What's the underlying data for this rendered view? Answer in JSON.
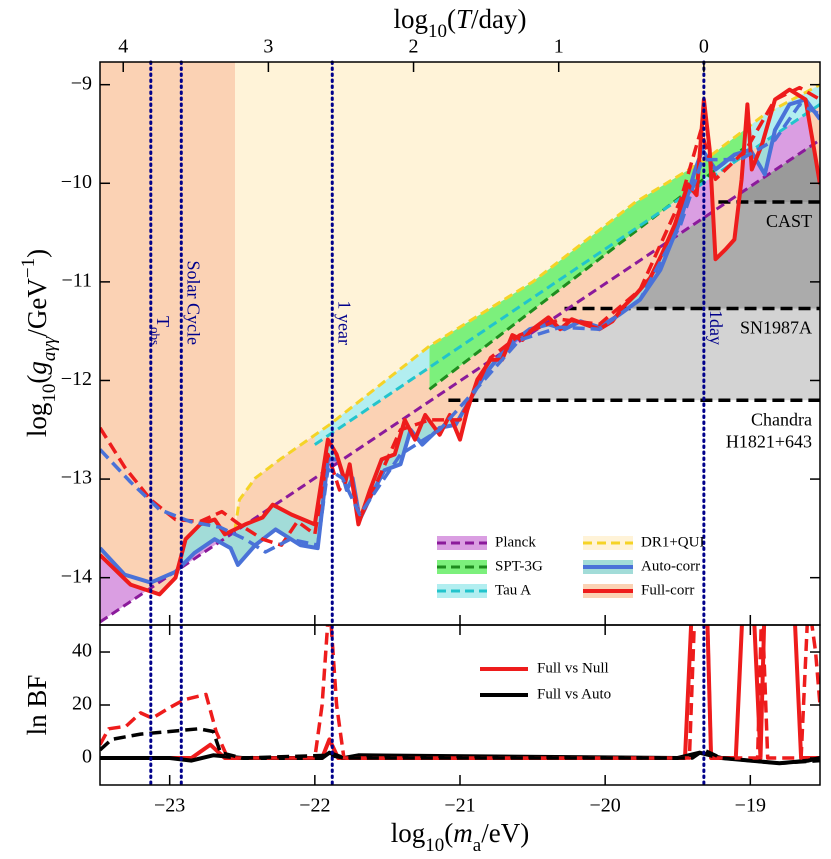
{
  "chart_data": [
    {
      "type": "line",
      "x2label": [
        "log",
        "10",
        "(",
        "T",
        "/day)"
      ],
      "ylabel": [
        "log",
        "10",
        "(",
        "g",
        "aγγ",
        "/GeV",
        "−1",
        ")"
      ],
      "xlim": [
        -23.48,
        -18.52
      ],
      "x2lim": [
        4.16,
        -0.8
      ],
      "x2ticks": [
        4,
        3,
        2,
        1,
        0
      ],
      "ylim": [
        -14.48,
        -8.77
      ],
      "yticks": [
        {
          "value": -14,
          "label": "−14"
        },
        {
          "value": -13,
          "label": "−13"
        },
        {
          "value": -12,
          "label": "−12"
        },
        {
          "value": -11,
          "label": "−11"
        },
        {
          "value": -10,
          "label": "−10"
        },
        {
          "value": -9,
          "label": "−9"
        }
      ],
      "legend": "lower right",
      "series": [
        {
          "name": "Planck",
          "color": "#8b1a9b",
          "fill": "#da9ee2",
          "dashed": true,
          "x": [
            -23.48,
            -18.52
          ],
          "values": [
            -14.45,
            -9.56
          ]
        },
        {
          "name": "SPT-3G",
          "color": "#1e8c1e",
          "fill": "#7cf07c",
          "dashed": true,
          "x": [
            -21.21,
            -19.04
          ],
          "values": [
            -12.09,
            -9.64
          ]
        },
        {
          "name": "Tau A",
          "color": "#22c4cc",
          "fill": "#b2eef0",
          "dashed": true,
          "x": [
            -22.0,
            -18.52
          ],
          "values": [
            -12.65,
            -9.2
          ]
        },
        {
          "name": "DR1+QUI",
          "color": "#f5d327",
          "fill": "#fff3d8",
          "dashed": true,
          "x": [
            -22.55,
            -22.52,
            -22.41,
            -22.24,
            -21.9,
            -21.21,
            -20.5,
            -19.8,
            -19.3,
            -18.9,
            -18.52
          ],
          "values": [
            -13.51,
            -13.21,
            -12.99,
            -12.8,
            -12.45,
            -11.65,
            -11.0,
            -10.2,
            -9.75,
            -9.3,
            -9.0
          ]
        },
        {
          "name": "Auto-corr",
          "color": "#4a72d8",
          "fill": "#a2dcd8",
          "dashed": false,
          "x": [
            -23.48,
            -23.31,
            -23.13,
            -22.96,
            -22.83,
            -22.69,
            -22.58,
            -22.53,
            -22.41,
            -22.27,
            -22.1,
            -21.98,
            -21.91,
            -21.84,
            -21.78,
            -21.74,
            -21.69,
            -21.61,
            -21.52,
            -21.41,
            -21.34,
            -21.26,
            -21.14,
            -21.03,
            -20.93,
            -20.83,
            -20.72,
            -20.62,
            -20.52,
            -20.39,
            -20.28,
            -20.17,
            -20.04,
            -19.9,
            -19.76,
            -19.62,
            -19.48,
            -19.38,
            -19.33,
            -19.24,
            -19.11,
            -19.0,
            -18.9,
            -18.83,
            -18.73,
            -18.62,
            -18.52
          ],
          "values": [
            -13.7,
            -13.97,
            -14.05,
            -13.94,
            -13.75,
            -13.61,
            -13.7,
            -13.87,
            -13.67,
            -13.51,
            -13.67,
            -13.7,
            -12.8,
            -12.8,
            -13.11,
            -12.99,
            -13.41,
            -13.16,
            -12.91,
            -12.85,
            -12.5,
            -12.65,
            -12.48,
            -12.45,
            -12.19,
            -11.94,
            -11.74,
            -11.59,
            -11.48,
            -11.43,
            -11.48,
            -11.4,
            -11.46,
            -11.33,
            -11.18,
            -10.88,
            -10.37,
            -9.86,
            -9.66,
            -9.86,
            -9.71,
            -9.66,
            -9.91,
            -9.46,
            -9.2,
            -9.15,
            -9.35
          ]
        },
        {
          "name": "Full-corr",
          "color": "#ee1c1c",
          "fill": "#fbd2b4",
          "dashed": false,
          "x": [
            -23.48,
            -23.27,
            -23.07,
            -22.96,
            -22.89,
            -22.79,
            -22.69,
            -22.62,
            -22.48,
            -22.36,
            -22.29,
            -22.16,
            -22.0,
            -21.91,
            -21.85,
            -21.79,
            -21.76,
            -21.7,
            -21.62,
            -21.54,
            -21.45,
            -21.38,
            -21.31,
            -21.24,
            -21.14,
            -21.07,
            -21.0,
            -20.95,
            -20.88,
            -20.79,
            -20.71,
            -20.64,
            -20.57,
            -20.5,
            -20.39,
            -20.31,
            -20.23,
            -20.14,
            -20.04,
            -19.95,
            -19.88,
            -19.79,
            -19.69,
            -19.61,
            -19.52,
            -19.43,
            -19.37,
            -19.32,
            -19.28,
            -19.24,
            -19.17,
            -19.11,
            -19.06,
            -19.02,
            -18.99,
            -18.92,
            -18.83,
            -18.73,
            -18.62,
            -18.56,
            -18.52
          ],
          "values": [
            -13.77,
            -14.07,
            -14.17,
            -14.0,
            -13.61,
            -13.46,
            -13.41,
            -13.56,
            -13.46,
            -13.39,
            -13.26,
            -13.36,
            -13.46,
            -12.6,
            -12.75,
            -13.03,
            -12.85,
            -13.46,
            -13.11,
            -12.8,
            -12.75,
            -12.4,
            -12.6,
            -12.35,
            -12.55,
            -12.35,
            -12.6,
            -12.3,
            -11.99,
            -11.79,
            -11.79,
            -11.54,
            -11.59,
            -11.48,
            -11.36,
            -11.48,
            -11.38,
            -11.43,
            -11.48,
            -11.4,
            -11.26,
            -11.13,
            -10.96,
            -10.72,
            -10.42,
            -10.01,
            -10.12,
            -9.15,
            -9.66,
            -10.77,
            -10.67,
            -10.57,
            -9.96,
            -9.2,
            -9.86,
            -9.61,
            -9.15,
            -9.05,
            -9.15,
            -9.66,
            -10.01
          ]
        },
        {
          "color": "#ee1c1c",
          "dashed": true,
          "x": [
            -23.48,
            -23.31,
            -23.13,
            -22.96,
            -22.79,
            -22.64,
            -22.52,
            -22.36,
            -22.23,
            -22.12,
            -22.0,
            -21.91,
            -21.83,
            -21.76,
            -21.69,
            -21.59,
            -21.41,
            -21.21,
            -21.0,
            -20.79,
            -20.59,
            -20.31,
            -20.04,
            -19.76,
            -19.48,
            -19.34,
            -19.24,
            -19.03,
            -18.83,
            -18.66,
            -18.52
          ],
          "values": [
            -12.48,
            -12.88,
            -13.21,
            -13.41,
            -13.43,
            -13.33,
            -13.46,
            -13.61,
            -13.67,
            -13.43,
            -13.56,
            -12.75,
            -13.11,
            -12.9,
            -13.41,
            -13.09,
            -12.5,
            -12.4,
            -12.4,
            -11.77,
            -11.54,
            -11.38,
            -11.43,
            -11.08,
            -10.17,
            -9.46,
            -9.96,
            -9.66,
            -9.15,
            -9.03,
            -9.15
          ]
        },
        {
          "color": "#4a72d8",
          "dashed": true,
          "x": [
            -23.48,
            -23.27,
            -23.07,
            -22.86,
            -22.65,
            -22.48,
            -22.34,
            -22.17,
            -21.98,
            -21.91,
            -21.81,
            -21.69,
            -21.41,
            -21.14,
            -20.86,
            -20.59,
            -20.31,
            -20.04,
            -19.76,
            -19.48,
            -19.33,
            -19.07,
            -18.83,
            -18.66,
            -18.52
          ],
          "values": [
            -12.7,
            -13.03,
            -13.31,
            -13.43,
            -13.49,
            -13.61,
            -13.74,
            -13.61,
            -13.67,
            -12.9,
            -12.99,
            -13.36,
            -12.75,
            -12.5,
            -12.04,
            -11.59,
            -11.46,
            -11.48,
            -11.18,
            -10.42,
            -9.76,
            -9.76,
            -9.56,
            -9.2,
            -9.3
          ]
        }
      ],
      "limits": [
        {
          "label": [
            "Chandra",
            "H1821+643"
          ],
          "value": -12.2,
          "xmin": -21.08,
          "fill": "#d3d3d3"
        },
        {
          "label": [
            "SN1987A"
          ],
          "value": -11.27,
          "xmin": -20.28,
          "fill": "#ababab"
        },
        {
          "label": [
            "CAST"
          ],
          "value": -10.19,
          "xmin": -19.22,
          "fill": "#9a9a9a"
        }
      ],
      "vline_color": "#00008b",
      "vlines": [
        {
          "x": -23.13,
          "label": [
            "T",
            "obs"
          ]
        },
        {
          "x": -22.92,
          "label": [
            "Solar Cycle"
          ]
        },
        {
          "x": -21.88,
          "label": [
            "1 year"
          ]
        },
        {
          "x": -19.32,
          "label": [
            "1day"
          ]
        }
      ]
    },
    {
      "type": "line",
      "xlabel": [
        "log",
        "10",
        "(",
        "m",
        "a",
        "/eV)"
      ],
      "ylabel": "ln BF",
      "xticks": [
        {
          "value": -23,
          "label": "−23"
        },
        {
          "value": -22,
          "label": "−22"
        },
        {
          "value": -21,
          "label": "−21"
        },
        {
          "value": -20,
          "label": "−20"
        },
        {
          "value": -19,
          "label": "−19"
        }
      ],
      "ylim": [
        -10.2,
        50.2
      ],
      "yticks": [
        0,
        20,
        40
      ],
      "legend": "center",
      "series": [
        {
          "name": "Full vs Null",
          "color": "#ee1c1c",
          "dashed": false,
          "x": [
            -23.48,
            -22.85,
            -22.72,
            -22.62,
            -21.95,
            -21.9,
            -21.84,
            -19.45,
            -19.4,
            -19.3,
            -19.27,
            -19.1,
            -19.05,
            -18.98,
            -18.93,
            -18.9,
            -18.7,
            -18.65,
            -18.52
          ],
          "values": [
            0,
            0,
            5,
            0,
            0,
            7,
            0,
            0,
            60,
            60,
            0,
            0,
            60,
            60,
            0,
            60,
            60,
            0,
            0
          ]
        },
        {
          "name": "Full vs Auto",
          "color": "#000000",
          "dashed": false,
          "x": [
            -23.48,
            -23.0,
            -22.85,
            -22.7,
            -22.5,
            -21.95,
            -21.9,
            -21.8,
            -21.7,
            -19.5,
            -19.35,
            -19.2,
            -19.0,
            -18.8,
            -18.6,
            -18.52
          ],
          "values": [
            0,
            0,
            -1,
            1,
            0,
            0,
            2,
            0,
            1,
            0,
            2,
            0,
            -1,
            -2,
            -1,
            0
          ]
        },
        {
          "color": "#ee1c1c",
          "dashed": true,
          "x": [
            -23.48,
            -23.42,
            -23.3,
            -23.2,
            -23.12,
            -23.0,
            -22.9,
            -22.75,
            -22.68,
            -22.6,
            -22.0,
            -21.95,
            -21.9,
            -21.85,
            -21.8,
            -19.42,
            -19.38,
            -19.3,
            -19.27,
            -18.95,
            -18.92,
            -18.88,
            -18.65,
            -18.6,
            -18.55,
            -18.52
          ],
          "values": [
            5,
            11,
            12,
            17,
            15,
            19,
            22,
            24,
            10,
            0,
            0,
            20,
            60,
            20,
            0,
            0,
            60,
            60,
            0,
            0,
            60,
            0,
            0,
            60,
            40,
            20
          ]
        },
        {
          "color": "#000000",
          "dashed": true,
          "x": [
            -23.48,
            -23.4,
            -23.2,
            -23.0,
            -22.8,
            -22.7,
            -22.65,
            -22.5,
            -21.9,
            -21.8,
            -19.4,
            -19.32,
            -19.2,
            -18.8,
            -18.52
          ],
          "values": [
            3,
            7,
            9,
            10,
            11,
            10,
            2,
            0,
            1,
            0,
            0,
            3,
            0,
            -2,
            -1
          ]
        }
      ]
    }
  ]
}
